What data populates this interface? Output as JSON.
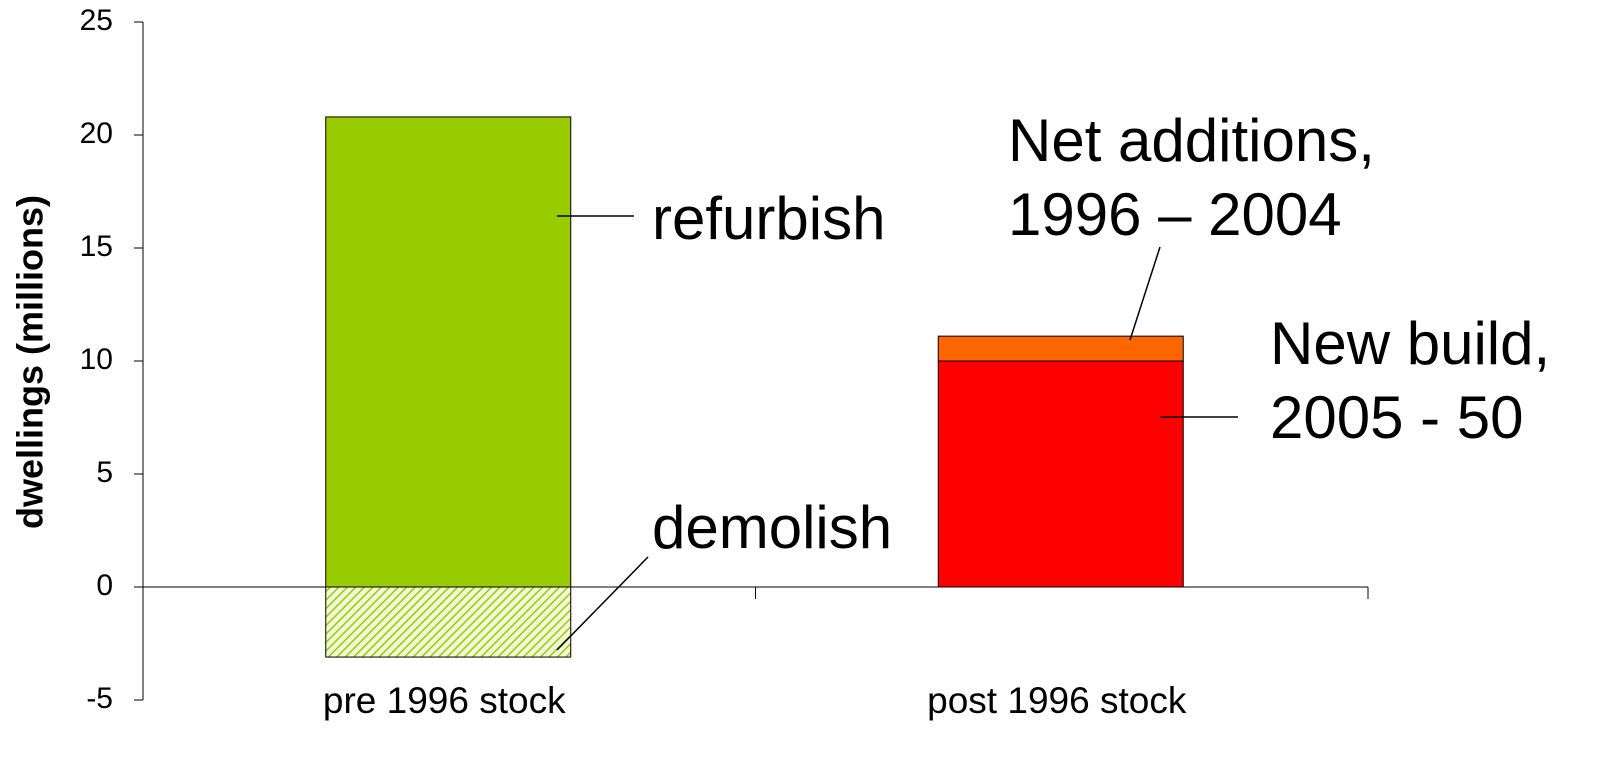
{
  "chart_data": {
    "type": "stacked_bar",
    "y_label": "dwellings (millions)",
    "categories": [
      "pre 1996 stock",
      "post 1996 stock"
    ],
    "series": [
      {
        "name": "refurbish",
        "color": "#99cc00",
        "values": [
          20.8,
          null
        ]
      },
      {
        "name": "demolish",
        "color": "#99cc00",
        "hatch": true,
        "values": [
          -3.1,
          null
        ]
      },
      {
        "name": "New build, 2005 - 50",
        "color": "#ff0000",
        "values": [
          null,
          10
        ]
      },
      {
        "name": "Net additions, 1996 – 2004",
        "color": "#ff6600",
        "values": [
          null,
          1.1
        ]
      }
    ],
    "ylim": [
      -5,
      25
    ],
    "yticks": [
      -5,
      0,
      5,
      10,
      15,
      20,
      25
    ],
    "grid": false
  }
}
